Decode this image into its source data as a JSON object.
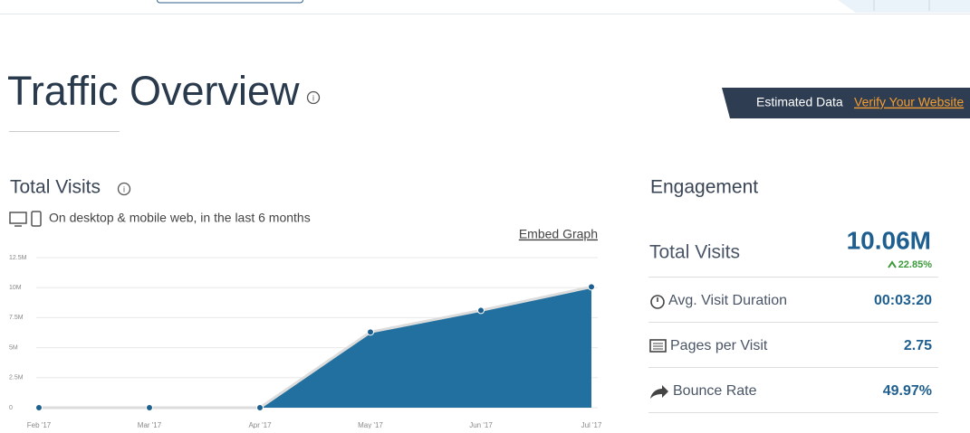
{
  "header": {
    "title": "Traffic Overview",
    "banner_text": "Estimated Data",
    "banner_link": "Verify Your Website"
  },
  "visits": {
    "title": "Total Visits",
    "subtitle": "On desktop & mobile web, in the last 6 months",
    "embed_link": "Embed Graph"
  },
  "chart_data": {
    "type": "area",
    "categories": [
      "Feb '17",
      "Mar '17",
      "Apr '17",
      "May '17",
      "Jun '17",
      "Jul '17"
    ],
    "series": [
      {
        "name": "Total Visits",
        "color": "#22709f",
        "values": [
          0,
          0,
          0,
          6300000,
          8100000,
          10060000
        ]
      }
    ],
    "ylim": [
      0,
      12500000
    ],
    "yticks": [
      0,
      {
        "value": 2500000,
        "label": "2.5M"
      },
      {
        "value": 5000000,
        "label": "5M"
      },
      {
        "value": 7500000,
        "label": "7.5M"
      },
      {
        "value": 10000000,
        "label": "10M"
      },
      {
        "value": 12500000,
        "label": "12.5M"
      }
    ],
    "grid": true
  },
  "engagement": {
    "title": "Engagement",
    "total_visits": {
      "label": "Total Visits",
      "value": "10.06M",
      "change": "22.85%"
    },
    "rows": [
      {
        "label": "Avg. Visit Duration",
        "value": "00:03:20"
      },
      {
        "label": "Pages per Visit",
        "value": "2.75"
      },
      {
        "label": "Bounce Rate",
        "value": "49.97%"
      }
    ]
  }
}
